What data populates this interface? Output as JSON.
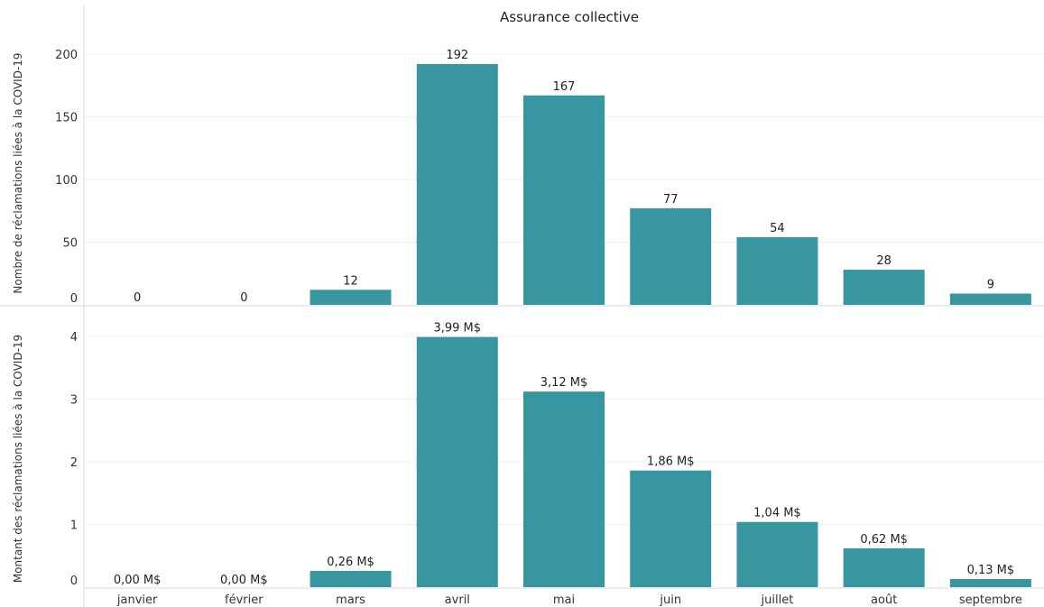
{
  "chart_data": {
    "type": "bar",
    "title": "Assurance collective",
    "categories": [
      "janvier",
      "février",
      "mars",
      "avril",
      "mai",
      "juin",
      "juillet",
      "août",
      "septembre"
    ],
    "bar_color": "#3896a0",
    "panels": [
      {
        "ylabel": "Nombre de réclamations liées à la COVID-19",
        "ylim": [
          0,
          210
        ],
        "yticks": [
          "0",
          "50",
          "100",
          "150",
          "200"
        ],
        "ytick_values": [
          0,
          50,
          100,
          150,
          200
        ],
        "values": [
          0,
          0,
          12,
          192,
          167,
          77,
          54,
          28,
          9
        ],
        "labels": [
          "0",
          "0",
          "12",
          "192",
          "167",
          "77",
          "54",
          "28",
          "9"
        ]
      },
      {
        "ylabel": "Montant des réclamations liées à la COVID-19",
        "ylim": [
          0,
          4.1
        ],
        "yticks": [
          "0",
          "1",
          "2",
          "3",
          "4"
        ],
        "ytick_values": [
          0,
          1,
          2,
          3,
          4
        ],
        "values": [
          0.0,
          0.0,
          0.26,
          3.99,
          3.12,
          1.86,
          1.04,
          0.62,
          0.13
        ],
        "labels": [
          "0,00 M$",
          "0,00 M$",
          "0,26 M$",
          "3,99 M$",
          "3,12 M$",
          "1,86 M$",
          "1,04 M$",
          "0,62 M$",
          "0,13 M$"
        ]
      }
    ]
  }
}
